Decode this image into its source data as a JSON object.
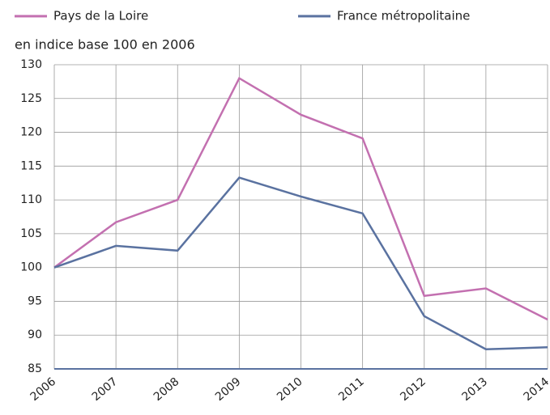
{
  "chart_data": {
    "type": "line",
    "y_axis_label": "en indice base 100 en 2006",
    "categories": [
      "2006",
      "2007",
      "2008",
      "2009",
      "2010",
      "2011",
      "2012",
      "2013",
      "2014"
    ],
    "series": [
      {
        "name": "Pays de la Loire",
        "color": "#c370b0",
        "values": [
          100,
          106.7,
          110,
          128,
          122.6,
          119.1,
          95.8,
          96.9,
          92.3
        ]
      },
      {
        "name": "France métropolitaine",
        "color": "#5a72a0",
        "values": [
          100,
          103.2,
          102.5,
          113.3,
          110.5,
          108,
          92.8,
          87.9,
          88.2
        ]
      }
    ],
    "ylim": [
      85,
      130
    ],
    "yticks": [
      85,
      90,
      95,
      100,
      105,
      110,
      115,
      120,
      125,
      130
    ],
    "grid": true
  }
}
